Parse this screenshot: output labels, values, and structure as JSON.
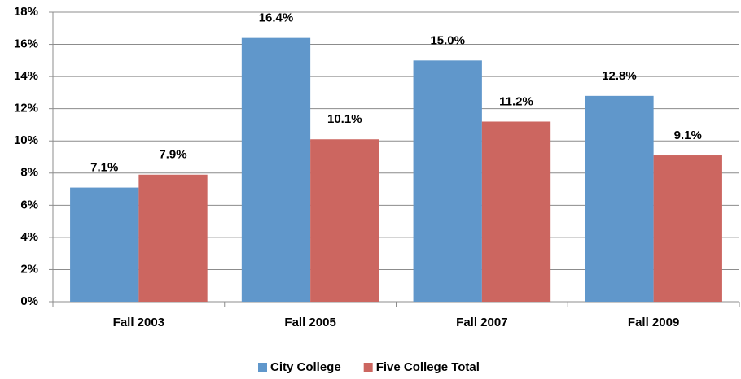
{
  "chart_data": {
    "type": "bar",
    "categories": [
      "Fall 2003",
      "Fall 2005",
      "Fall 2007",
      "Fall 2009"
    ],
    "series": [
      {
        "name": "City College",
        "color": "#6097cb",
        "values": [
          7.1,
          16.4,
          15.0,
          12.8
        ],
        "value_labels": [
          "7.1%",
          "16.4%",
          "15.0%",
          "12.8%"
        ]
      },
      {
        "name": "Five College Total",
        "color": "#cc6660",
        "values": [
          7.9,
          10.1,
          11.2,
          9.1
        ],
        "value_labels": [
          "7.9%",
          "10.1%",
          "11.2%",
          "9.1%"
        ]
      }
    ],
    "ylim": [
      0,
      18
    ],
    "yticks": [
      {
        "value": 0,
        "label": "0%"
      },
      {
        "value": 2,
        "label": "2%"
      },
      {
        "value": 4,
        "label": "4%"
      },
      {
        "value": 6,
        "label": "6%"
      },
      {
        "value": 8,
        "label": "8%"
      },
      {
        "value": 10,
        "label": "10%"
      },
      {
        "value": 12,
        "label": "12%"
      },
      {
        "value": 14,
        "label": "14%"
      },
      {
        "value": 16,
        "label": "16%"
      },
      {
        "value": 18,
        "label": "18%"
      }
    ],
    "grid": true,
    "legend": "bottom"
  }
}
